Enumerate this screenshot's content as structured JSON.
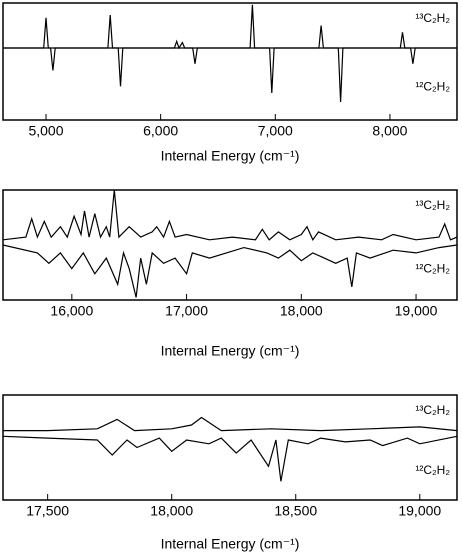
{
  "chart_data": [
    {
      "type": "line",
      "xlabel": "Internal Energy (cm⁻¹)",
      "xlim": [
        4625,
        8585
      ],
      "ylim": [
        -1.6,
        1
      ],
      "xticks": [
        {
          "value": 5000,
          "label": "5,000"
        },
        {
          "value": 6000,
          "label": "6,000"
        },
        {
          "value": 7000,
          "label": "7,000"
        },
        {
          "value": 8000,
          "label": "8,000"
        }
      ],
      "series": [
        {
          "name": "¹³C₂H₂",
          "color": "#000000",
          "x": [
            4625,
            4980,
            5000,
            5020,
            5540,
            5560,
            5580,
            6120,
            6140,
            6160,
            6190,
            6210,
            6780,
            6800,
            6820,
            7380,
            7400,
            7420,
            8090,
            8110,
            8130,
            8585
          ],
          "values": [
            0,
            0,
            0.67,
            0,
            0,
            0.73,
            0,
            0,
            0.15,
            0,
            0.12,
            0,
            0,
            0.96,
            0,
            0,
            0.5,
            0,
            0,
            0.35,
            0,
            0
          ]
        },
        {
          "name": "¹²C₂H₂",
          "color": "#000000",
          "x": [
            4625,
            5040,
            5060,
            5080,
            5630,
            5650,
            5670,
            6280,
            6300,
            6320,
            6950,
            6970,
            6990,
            7550,
            7570,
            7590,
            8180,
            8200,
            8220,
            8585
          ],
          "values": [
            0,
            0,
            -0.5,
            0,
            0,
            -0.85,
            0,
            0,
            -0.35,
            0,
            0,
            -1.0,
            0,
            0,
            -1.2,
            0,
            0,
            -0.35,
            0,
            0
          ]
        }
      ]
    },
    {
      "type": "line",
      "xlabel": "Internal Energy (cm⁻¹)",
      "xlim": [
        15400,
        19357
      ],
      "ylim": [
        -1.1,
        1
      ],
      "xticks": [
        {
          "value": 16000,
          "label": "16,000"
        },
        {
          "value": 17000,
          "label": "17,000"
        },
        {
          "value": 18000,
          "label": "18,000"
        },
        {
          "value": 19000,
          "label": "19,000"
        }
      ],
      "series": [
        {
          "name": "¹³C₂H₂",
          "color": "#000000",
          "x": [
            15400,
            15600,
            15650,
            15700,
            15760,
            15820,
            15900,
            15960,
            16020,
            16080,
            16110,
            16150,
            16200,
            16250,
            16300,
            16330,
            16370,
            16410,
            16500,
            16600,
            16700,
            16740,
            16800,
            16850,
            16900,
            17000,
            17200,
            17400,
            17600,
            17660,
            17720,
            17800,
            17900,
            18000,
            18050,
            18100,
            18150,
            18300,
            18500,
            18700,
            18800,
            19000,
            19200,
            19250,
            19300,
            19357
          ],
          "values": [
            0.05,
            0.1,
            0.45,
            0.1,
            0.4,
            0.1,
            0.3,
            0.1,
            0.5,
            0.15,
            0.6,
            0.1,
            0.55,
            0.1,
            0.3,
            0.1,
            1.0,
            0.1,
            0.3,
            0.1,
            0.2,
            0.3,
            0.1,
            0.4,
            0.1,
            0.15,
            0.05,
            0.1,
            0.05,
            0.25,
            0.05,
            0.2,
            0.05,
            0.15,
            0.3,
            0.05,
            0.2,
            0.05,
            0.1,
            0.05,
            0.15,
            0.05,
            0.1,
            0.35,
            0.05,
            0.1
          ]
        },
        {
          "name": "¹²C₂H₂",
          "color": "#000000",
          "x": [
            15400,
            15700,
            15800,
            15900,
            16000,
            16100,
            16200,
            16300,
            16400,
            16450,
            16500,
            16560,
            16600,
            16650,
            16700,
            16800,
            16900,
            17000,
            17050,
            17200,
            17500,
            17700,
            17800,
            17900,
            18000,
            18100,
            18200,
            18300,
            18400,
            18440,
            18480,
            18600,
            18800,
            19000,
            19200,
            19357
          ],
          "values": [
            -0.05,
            -0.2,
            -0.4,
            -0.2,
            -0.5,
            -0.2,
            -0.6,
            -0.3,
            -0.8,
            -0.2,
            -0.5,
            -1.05,
            -0.3,
            -0.8,
            -0.2,
            -0.4,
            -0.3,
            -0.6,
            -0.2,
            -0.3,
            -0.1,
            -0.2,
            -0.3,
            -0.15,
            -0.35,
            -0.2,
            -0.3,
            -0.4,
            -0.3,
            -0.85,
            -0.2,
            -0.3,
            -0.15,
            -0.2,
            -0.1,
            -0.05
          ]
        }
      ]
    },
    {
      "type": "line",
      "xlabel": "Internal Energy (cm⁻¹)",
      "xlim": [
        17320,
        19150
      ],
      "ylim": [
        -1.8,
        1
      ],
      "xticks": [
        {
          "value": 17500,
          "label": "17,500"
        },
        {
          "value": 18000,
          "label": "18,000"
        },
        {
          "value": 18500,
          "label": "18,500"
        },
        {
          "value": 19000,
          "label": "19,000"
        }
      ],
      "series": [
        {
          "name": "¹³C₂H₂",
          "color": "#000000",
          "x": [
            17320,
            17500,
            17700,
            17780,
            17850,
            18000,
            18080,
            18120,
            18200,
            18400,
            18600,
            18800,
            19000,
            19150
          ],
          "values": [
            0.05,
            0.05,
            0.1,
            0.35,
            0.05,
            0.1,
            0.2,
            0.4,
            0.05,
            0.1,
            0.05,
            0.1,
            0.15,
            0.05
          ]
        },
        {
          "name": "¹²C₂H₂",
          "color": "#000000",
          "x": [
            17320,
            17500,
            17700,
            17760,
            17820,
            17860,
            17950,
            18000,
            18060,
            18150,
            18200,
            18260,
            18320,
            18390,
            18420,
            18440,
            18470,
            18550,
            18600,
            18700,
            18800,
            18850,
            18950,
            19000,
            19150
          ],
          "values": [
            -0.1,
            -0.15,
            -0.2,
            -0.6,
            -0.2,
            -0.4,
            -0.15,
            -0.5,
            -0.2,
            -0.3,
            -0.15,
            -0.55,
            -0.2,
            -0.9,
            -0.2,
            -1.3,
            -0.2,
            -0.3,
            -0.15,
            -0.25,
            -0.2,
            -0.35,
            -0.15,
            -0.3,
            -0.1
          ]
        }
      ]
    }
  ]
}
